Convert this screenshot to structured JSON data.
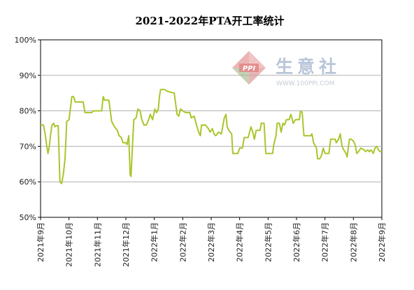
{
  "chart_data": {
    "type": "line",
    "title": "2021-2022年PTA开工率统计",
    "xlabel": "",
    "ylabel": "",
    "ylim": [
      50,
      100
    ],
    "yticks": [
      "50%",
      "60%",
      "70%",
      "80%",
      "90%",
      "100%"
    ],
    "xticks": [
      "2021年9月",
      "2021年10月",
      "2021年11月",
      "2021年12月",
      "2022年1月",
      "2022年2月",
      "2022年3月",
      "2022年4月",
      "2022年5月",
      "2022年6月",
      "2022年7月",
      "2022年8月",
      "2022年9月"
    ],
    "xrange": [
      0,
      12
    ],
    "grid": true,
    "color": "#a8c62c",
    "watermark": {
      "name": "生意社",
      "logo": "PPI",
      "url": "WWW.100PPI.COM"
    },
    "series": [
      {
        "name": "",
        "points": [
          [
            0.0,
            76.0
          ],
          [
            0.1,
            76.0
          ],
          [
            0.16,
            73.5
          ],
          [
            0.22,
            70.0
          ],
          [
            0.26,
            68.0
          ],
          [
            0.3,
            69.5
          ],
          [
            0.35,
            73.0
          ],
          [
            0.4,
            76.0
          ],
          [
            0.46,
            76.5
          ],
          [
            0.5,
            75.5
          ],
          [
            0.55,
            75.8
          ],
          [
            0.62,
            75.8
          ],
          [
            0.68,
            60.0
          ],
          [
            0.74,
            59.5
          ],
          [
            0.8,
            62.0
          ],
          [
            0.86,
            66.5
          ],
          [
            0.92,
            77.0
          ],
          [
            1.0,
            77.5
          ],
          [
            1.04,
            80.0
          ],
          [
            1.1,
            84.0
          ],
          [
            1.16,
            84.0
          ],
          [
            1.22,
            82.5
          ],
          [
            1.5,
            82.5
          ],
          [
            1.56,
            79.5
          ],
          [
            1.8,
            79.5
          ],
          [
            1.86,
            80.0
          ],
          [
            2.15,
            80.0
          ],
          [
            2.2,
            84.0
          ],
          [
            2.25,
            83.0
          ],
          [
            2.4,
            83.0
          ],
          [
            2.5,
            77.0
          ],
          [
            2.6,
            75.5
          ],
          [
            2.7,
            74.5
          ],
          [
            2.76,
            73.0
          ],
          [
            2.84,
            72.5
          ],
          [
            2.9,
            71.0
          ],
          [
            3.0,
            71.0
          ],
          [
            3.04,
            70.5
          ],
          [
            3.1,
            73.0
          ],
          [
            3.15,
            62.0
          ],
          [
            3.18,
            61.5
          ],
          [
            3.23,
            70.0
          ],
          [
            3.28,
            77.5
          ],
          [
            3.36,
            78.0
          ],
          [
            3.42,
            80.5
          ],
          [
            3.5,
            80.0
          ],
          [
            3.56,
            77.5
          ],
          [
            3.64,
            76.0
          ],
          [
            3.72,
            76.0
          ],
          [
            3.8,
            77.5
          ],
          [
            3.86,
            79.0
          ],
          [
            3.94,
            77.5
          ],
          [
            4.02,
            80.5
          ],
          [
            4.08,
            79.5
          ],
          [
            4.14,
            80.5
          ],
          [
            4.18,
            84.0
          ],
          [
            4.22,
            86.0
          ],
          [
            4.36,
            86.0
          ],
          [
            4.46,
            85.5
          ],
          [
            4.7,
            85.0
          ],
          [
            4.75,
            82.0
          ],
          [
            4.8,
            79.0
          ],
          [
            4.86,
            78.5
          ],
          [
            4.92,
            80.5
          ],
          [
            5.0,
            80.0
          ],
          [
            5.1,
            79.5
          ],
          [
            5.25,
            79.5
          ],
          [
            5.3,
            78.0
          ],
          [
            5.4,
            78.5
          ],
          [
            5.5,
            75.5
          ],
          [
            5.56,
            74.0
          ],
          [
            5.62,
            73.0
          ],
          [
            5.66,
            76.0
          ],
          [
            5.8,
            76.0
          ],
          [
            5.9,
            75.0
          ],
          [
            5.96,
            74.0
          ],
          [
            6.04,
            75.0
          ],
          [
            6.1,
            73.5
          ],
          [
            6.16,
            73.0
          ],
          [
            6.26,
            74.0
          ],
          [
            6.36,
            73.5
          ],
          [
            6.46,
            78.0
          ],
          [
            6.52,
            79.0
          ],
          [
            6.56,
            75.5
          ],
          [
            6.62,
            74.5
          ],
          [
            6.72,
            73.5
          ],
          [
            6.76,
            68.0
          ],
          [
            6.94,
            68.0
          ],
          [
            7.0,
            69.5
          ],
          [
            7.1,
            69.5
          ],
          [
            7.16,
            72.5
          ],
          [
            7.3,
            72.5
          ],
          [
            7.4,
            75.5
          ],
          [
            7.46,
            74.0
          ],
          [
            7.52,
            72.0
          ],
          [
            7.58,
            74.5
          ],
          [
            7.72,
            74.5
          ],
          [
            7.76,
            76.5
          ],
          [
            7.86,
            76.5
          ],
          [
            7.92,
            68.0
          ],
          [
            8.16,
            68.0
          ],
          [
            8.2,
            70.5
          ],
          [
            8.28,
            73.0
          ],
          [
            8.32,
            76.5
          ],
          [
            8.4,
            76.5
          ],
          [
            8.46,
            74.0
          ],
          [
            8.52,
            76.5
          ],
          [
            8.58,
            76.0
          ],
          [
            8.64,
            77.5
          ],
          [
            8.74,
            77.5
          ],
          [
            8.8,
            79.0
          ],
          [
            8.84,
            78.0
          ],
          [
            8.88,
            76.5
          ],
          [
            8.96,
            77.5
          ],
          [
            9.1,
            77.5
          ],
          [
            9.14,
            80.0
          ],
          [
            9.2,
            79.5
          ],
          [
            9.26,
            73.0
          ],
          [
            9.5,
            73.0
          ],
          [
            9.54,
            73.5
          ],
          [
            9.6,
            71.0
          ],
          [
            9.7,
            69.5
          ],
          [
            9.74,
            66.5
          ],
          [
            9.82,
            66.5
          ],
          [
            9.88,
            67.5
          ],
          [
            9.94,
            69.5
          ],
          [
            10.0,
            68.0
          ],
          [
            10.14,
            68.0
          ],
          [
            10.2,
            72.0
          ],
          [
            10.36,
            72.0
          ],
          [
            10.4,
            71.0
          ],
          [
            10.48,
            72.0
          ],
          [
            10.54,
            73.5
          ],
          [
            10.6,
            70.0
          ],
          [
            10.66,
            69.0
          ],
          [
            10.74,
            68.0
          ],
          [
            10.78,
            67.0
          ],
          [
            10.86,
            72.0
          ],
          [
            10.92,
            72.0
          ],
          [
            11.0,
            71.5
          ],
          [
            11.06,
            70.5
          ],
          [
            11.12,
            68.0
          ],
          [
            11.18,
            68.5
          ],
          [
            11.26,
            69.5
          ],
          [
            11.38,
            69.0
          ],
          [
            11.42,
            68.5
          ],
          [
            11.5,
            69.0
          ],
          [
            11.56,
            68.5
          ],
          [
            11.62,
            69.0
          ],
          [
            11.7,
            68.0
          ],
          [
            11.76,
            69.5
          ],
          [
            11.82,
            70.0
          ],
          [
            11.88,
            69.0
          ],
          [
            11.94,
            68.5
          ],
          [
            12.0,
            68.5
          ]
        ]
      }
    ]
  }
}
